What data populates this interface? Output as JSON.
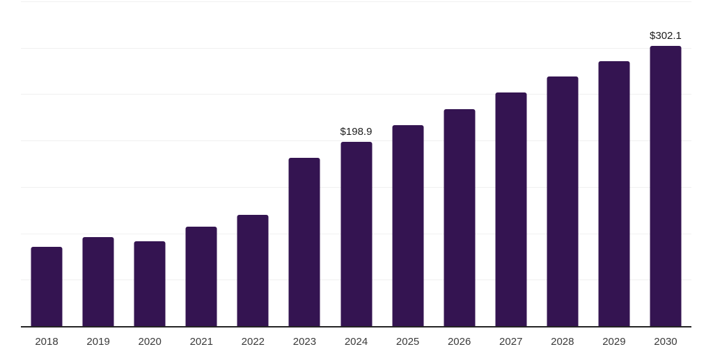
{
  "chart": {
    "background_color": "#ffffff",
    "bar_color": "#341451",
    "grid_color": "#f0f0f0",
    "axis_line_color": "#242424",
    "tick_label_color": "#3a3a3a",
    "data_label_color": "#1c1c1c"
  },
  "chart_data": {
    "type": "bar",
    "title": "",
    "xlabel": "",
    "ylabel": "",
    "categories": [
      "2018",
      "2019",
      "2020",
      "2021",
      "2022",
      "2023",
      "2024",
      "2025",
      "2026",
      "2027",
      "2028",
      "2029",
      "2030"
    ],
    "values": [
      85.5,
      95.9,
      91.2,
      107.2,
      120.0,
      181.2,
      198.9,
      216.3,
      233.8,
      252.0,
      268.7,
      285.4,
      302.1
    ],
    "data_labels": {
      "2024": "$198.9",
      "2030": "$302.1"
    },
    "ylim": [
      0,
      350
    ],
    "gridline_values": [
      50,
      100,
      150,
      200,
      250,
      300,
      350
    ],
    "grid": true,
    "legend": false,
    "y_tick_labels_shown": false
  }
}
